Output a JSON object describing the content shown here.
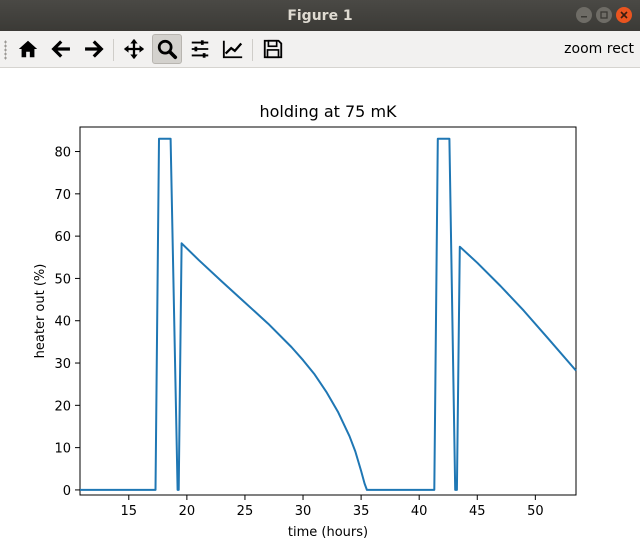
{
  "window": {
    "title": "Figure 1"
  },
  "toolbar": {
    "buttons": [
      {
        "name": "home-button",
        "icon": "home-icon"
      },
      {
        "name": "back-button",
        "icon": "arrow-left-icon"
      },
      {
        "name": "forward-button",
        "icon": "arrow-right-icon"
      },
      {
        "name": "pan-button",
        "icon": "move-icon"
      },
      {
        "name": "zoom-button",
        "icon": "magnifier-icon",
        "active": true
      },
      {
        "name": "subplots-button",
        "icon": "sliders-icon"
      },
      {
        "name": "edit-axes-button",
        "icon": "line-chart-icon"
      },
      {
        "name": "save-button",
        "icon": "floppy-icon"
      }
    ],
    "mode_text": "zoom rect"
  },
  "chart_data": {
    "type": "line",
    "title": "holding at 75 mK",
    "xlabel": "time (hours)",
    "ylabel": "heater out (%)",
    "xlim": [
      10.8,
      53.5
    ],
    "ylim": [
      -1.2,
      85.8
    ],
    "xticks": [
      15,
      20,
      25,
      30,
      35,
      40,
      45,
      50
    ],
    "yticks": [
      0,
      10,
      20,
      30,
      40,
      50,
      60,
      70,
      80
    ],
    "color": "#1f77b4",
    "grid": false,
    "series": [
      {
        "x": [
          10.8,
          17.3,
          17.6,
          18.6,
          19.2,
          19.3,
          19.55,
          21,
          23,
          25,
          27,
          29,
          30,
          31,
          32,
          33,
          34,
          34.5,
          35,
          35.3,
          35.5,
          41.3,
          41.6,
          42.6,
          43.1,
          43.25,
          43.5,
          45,
          47,
          49,
          51,
          53.5
        ],
        "y": [
          0,
          0,
          83,
          83,
          0,
          0,
          58.3,
          54.4,
          49.3,
          44.3,
          39.3,
          33.8,
          30.7,
          27.3,
          23.2,
          18.5,
          12.7,
          9.1,
          4.5,
          1.5,
          0,
          0,
          83,
          83,
          0,
          0,
          57.5,
          53.7,
          48.2,
          42.4,
          36.1,
          28.2
        ]
      }
    ]
  }
}
